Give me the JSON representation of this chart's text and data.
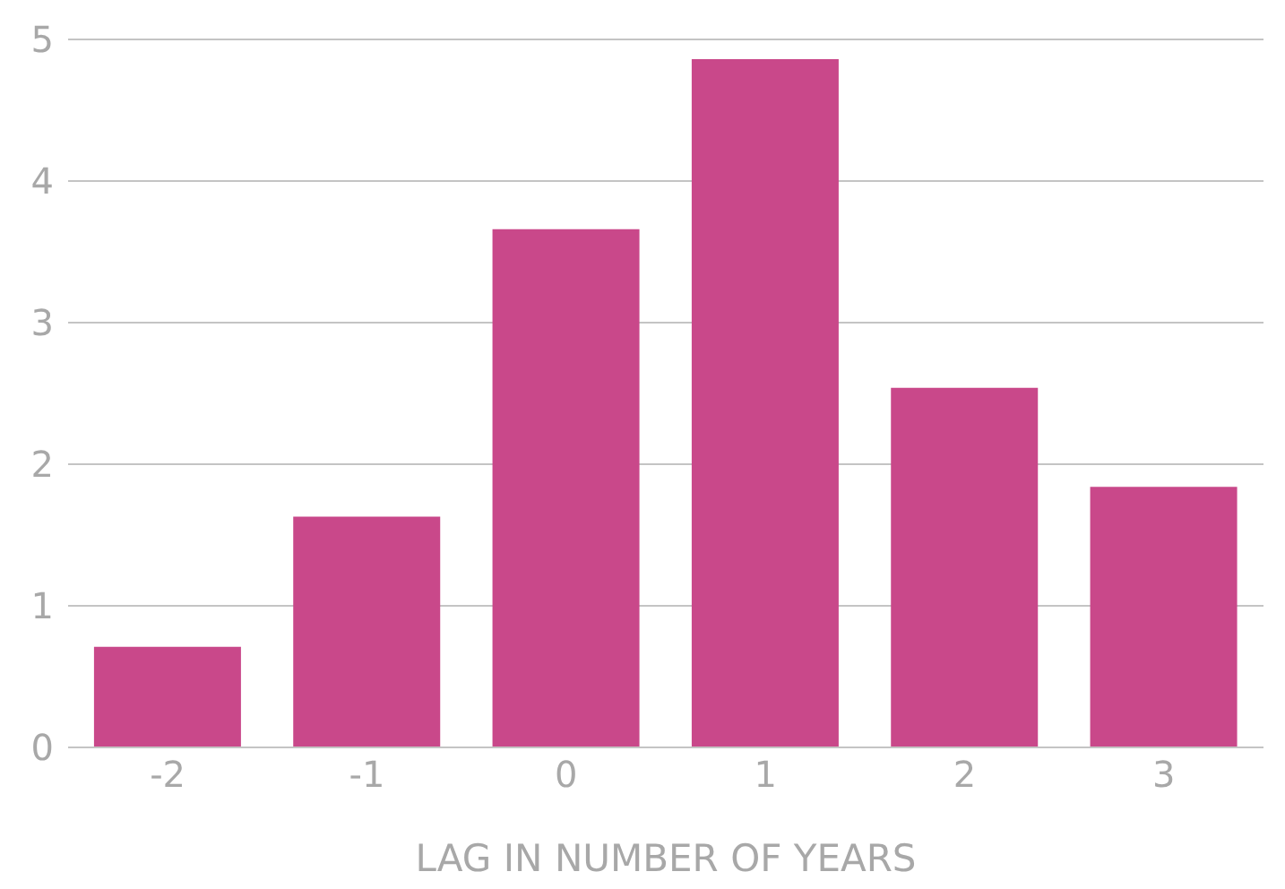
{
  "chart_data": {
    "type": "bar",
    "xlabel": "LAG IN NUMBER OF YEARS",
    "categories": [
      "-2",
      "-1",
      "0",
      "1",
      "2",
      "3"
    ],
    "values": [
      0.71,
      1.63,
      3.66,
      4.86,
      2.54,
      1.84
    ],
    "color": "#c9488a",
    "ylim": [
      0,
      5
    ],
    "yticks": [
      0,
      1,
      2,
      3,
      4,
      5
    ],
    "grid": "y",
    "legend": false
  }
}
